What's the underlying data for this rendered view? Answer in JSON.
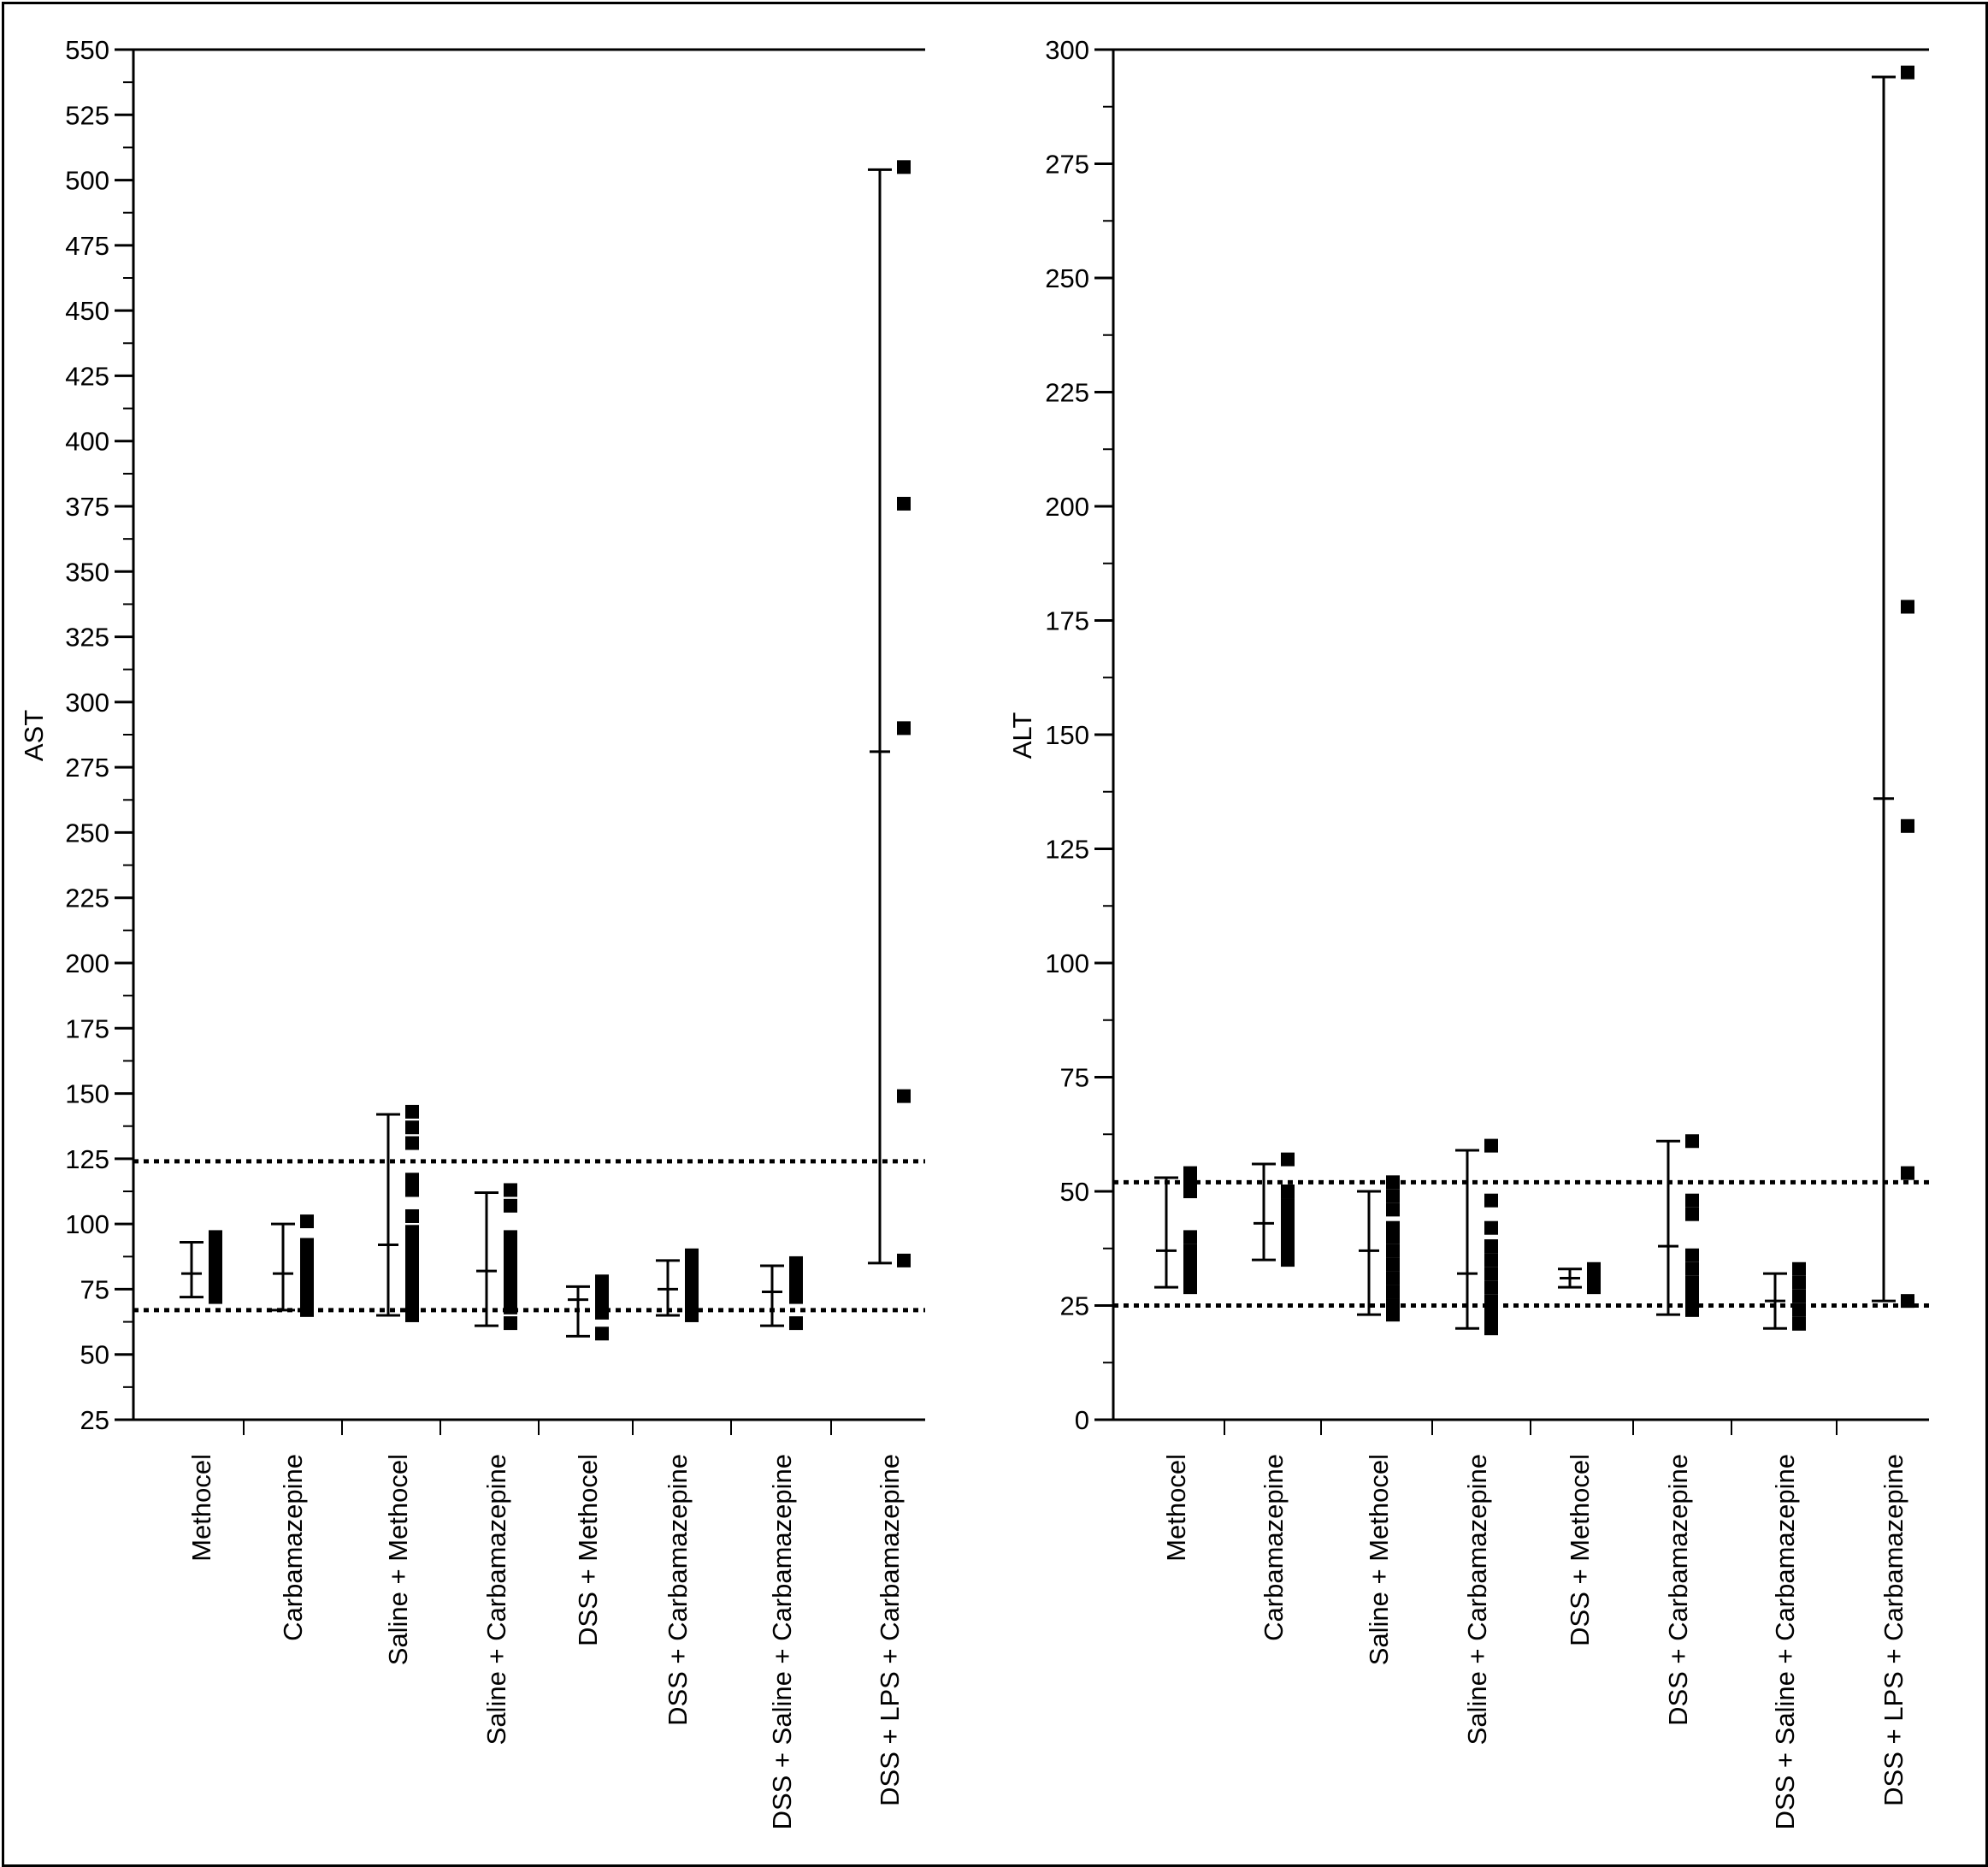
{
  "chart_data": [
    {
      "type": "scatter",
      "ylabel": "AST",
      "ylim": [
        25,
        550
      ],
      "yticks": [
        25,
        50,
        75,
        100,
        125,
        150,
        175,
        200,
        225,
        250,
        275,
        300,
        325,
        350,
        375,
        400,
        425,
        450,
        475,
        500,
        525,
        550
      ],
      "categories": [
        "Methocel",
        "Carbamazepine",
        "Saline + Methocel",
        "Saline + Carbamazepine",
        "DSS + Methocel",
        "DSS + Carbamazepine",
        "DSS + Saline + Carbamazepine",
        "DSS + LPS + Carbamazepine"
      ],
      "reference_lines": [
        124,
        67
      ],
      "groups": [
        {
          "points": [
            72,
            76,
            78,
            80,
            82,
            84,
            88,
            91,
            95
          ],
          "mean": 81,
          "sd_low": 72,
          "sd_high": 93
        },
        {
          "points": [
            67,
            70,
            73,
            76,
            79,
            82,
            85,
            88,
            92,
            101
          ],
          "mean": 81,
          "sd_low": 67,
          "sd_high": 100
        },
        {
          "points": [
            65,
            68,
            72,
            75,
            80,
            85,
            90,
            93,
            97,
            103,
            113,
            117,
            131,
            137,
            143
          ],
          "mean": 92,
          "sd_low": 65,
          "sd_high": 142
        },
        {
          "points": [
            62,
            68,
            72,
            76,
            80,
            84,
            88,
            92,
            95,
            107,
            113
          ],
          "mean": 82,
          "sd_low": 61,
          "sd_high": 112
        },
        {
          "points": [
            58,
            66,
            70,
            74,
            78
          ],
          "mean": 71,
          "sd_low": 57,
          "sd_high": 76
        },
        {
          "points": [
            65,
            67,
            70,
            73,
            76,
            79,
            82,
            85,
            88
          ],
          "mean": 75,
          "sd_low": 65,
          "sd_high": 86
        },
        {
          "points": [
            62,
            72,
            76,
            80,
            85
          ],
          "mean": 74,
          "sd_low": 61,
          "sd_high": 84
        },
        {
          "points": [
            86,
            149,
            290,
            376,
            505
          ],
          "mean": 281,
          "sd_low": 85,
          "sd_high": 504
        }
      ]
    },
    {
      "type": "scatter",
      "ylabel": "ALT",
      "ylim": [
        0,
        300
      ],
      "yticks": [
        0,
        25,
        50,
        75,
        100,
        125,
        150,
        175,
        200,
        225,
        250,
        275,
        300
      ],
      "categories": [
        "Methocel",
        "Carbamazepine",
        "Saline + Methocel",
        "Saline + Carbamazepine",
        "DSS + Methocel",
        "DSS + Carbamazepine",
        "DSS + Saline + Carbamazepine",
        "DSS + LPS + Carbamazepine"
      ],
      "reference_lines": [
        52,
        25
      ],
      "groups": [
        {
          "points": [
            29,
            31,
            33,
            35,
            37,
            40,
            50,
            52,
            54
          ],
          "mean": 37,
          "sd_low": 29,
          "sd_high": 53
        },
        {
          "points": [
            35,
            37,
            39,
            41,
            43,
            45,
            47,
            50,
            57
          ],
          "mean": 43,
          "sd_low": 35,
          "sd_high": 56
        },
        {
          "points": [
            23,
            25,
            28,
            31,
            34,
            37,
            40,
            42,
            46,
            49,
            52
          ],
          "mean": 37,
          "sd_low": 23,
          "sd_high": 50
        },
        {
          "points": [
            20,
            22,
            24,
            26,
            29,
            32,
            35,
            38,
            42,
            48,
            60
          ],
          "mean": 32,
          "sd_low": 20,
          "sd_high": 59
        },
        {
          "points": [
            29,
            30,
            31,
            32,
            33
          ],
          "mean": 31,
          "sd_low": 29,
          "sd_high": 33
        },
        {
          "points": [
            24,
            26,
            28,
            30,
            33,
            36,
            45,
            48,
            61
          ],
          "mean": 38,
          "sd_low": 23,
          "sd_high": 61
        },
        {
          "points": [
            21,
            24,
            27,
            30,
            33
          ],
          "mean": 26,
          "sd_low": 20,
          "sd_high": 32
        },
        {
          "points": [
            26,
            54,
            130,
            178,
            295
          ],
          "mean": 136,
          "sd_low": 26,
          "sd_high": 294
        }
      ]
    }
  ]
}
